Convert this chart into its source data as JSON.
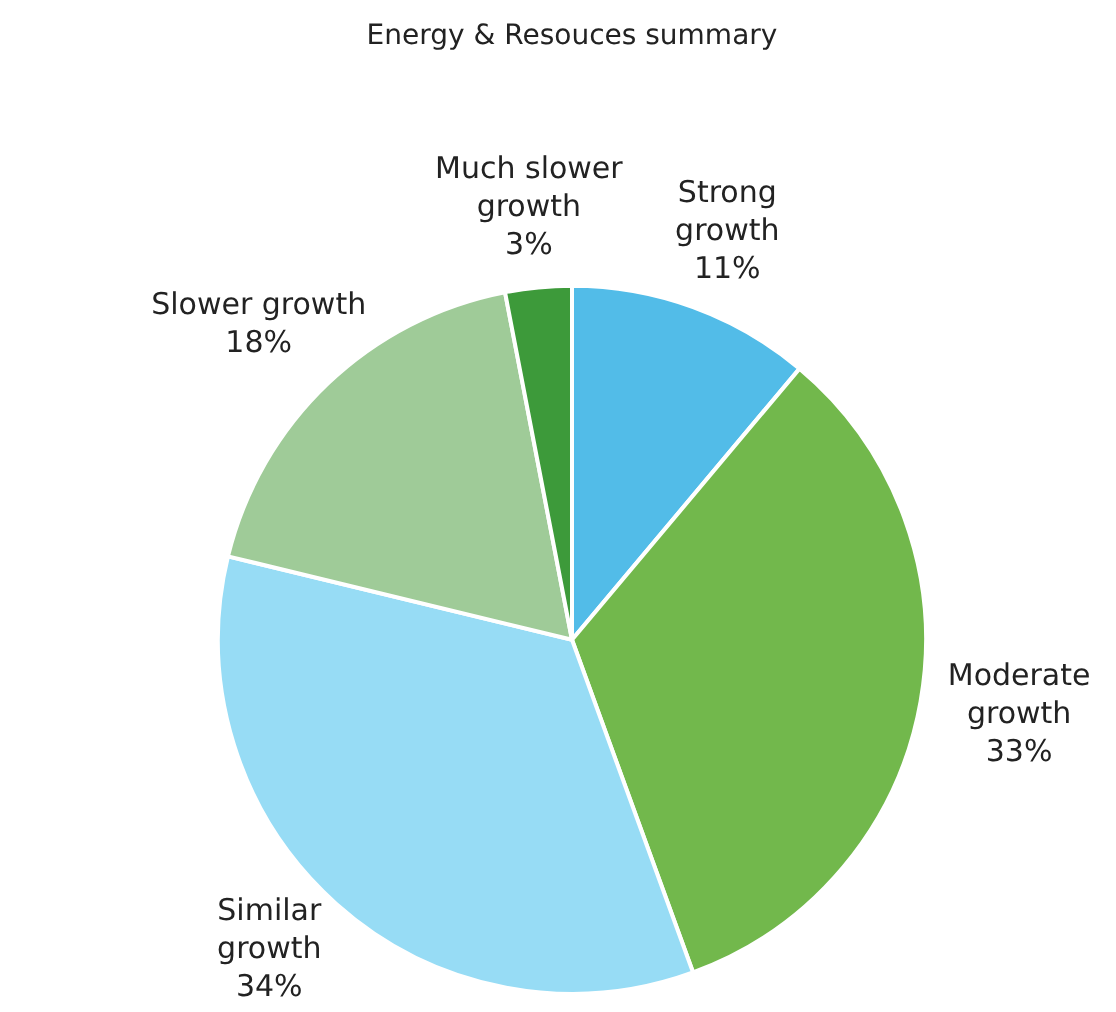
{
  "chart_data": {
    "type": "pie",
    "title": "Energy & Resouces summary",
    "categories": [
      "Strong\ngrowth",
      "Moderate\ngrowth",
      "Similar\ngrowth",
      "Slower growth",
      "Much slower\ngrowth"
    ],
    "values": [
      11,
      33,
      34,
      18,
      3
    ],
    "value_labels": [
      "11%",
      "33%",
      "34%",
      "18%",
      "3%"
    ],
    "colors": [
      "#52bce8",
      "#72b84c",
      "#97dcf5",
      "#9fcb98",
      "#3d9a3a"
    ],
    "legend": false
  }
}
